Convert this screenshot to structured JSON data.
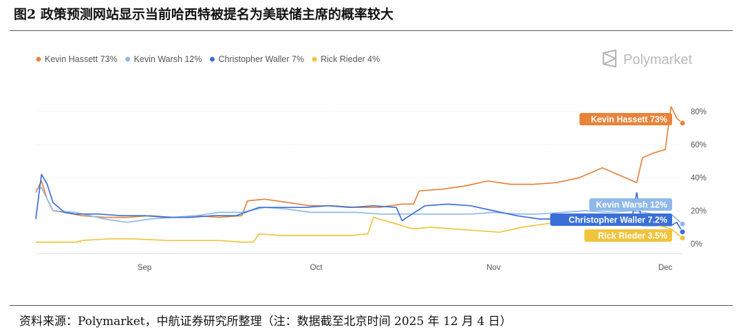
{
  "figure": {
    "title": "图2  政策预测网站显示当前哈西特被提名为美联储主席的概率较大",
    "source": "资料来源：Polymarket，中航证券研究所整理（注：数据截至北京时间 2025 年 12 月 4 日）"
  },
  "brand": {
    "name": "Polymarket",
    "icon": "polymarket-logo-icon",
    "color": "#b9b9b9"
  },
  "chart_data": {
    "type": "line",
    "legend_position": "top-left",
    "grid": true,
    "y_axis_side": "right",
    "ylim": [
      0,
      85
    ],
    "yticks": [
      0,
      20,
      40,
      60,
      80
    ],
    "ytick_labels": [
      "0%",
      "20%",
      "40%",
      "60%",
      "80%"
    ],
    "xlim": [
      "2025-08-13",
      "2025-12-04"
    ],
    "xticks": [
      "2025-09-01",
      "2025-10-01",
      "2025-11-01",
      "2025-12-01"
    ],
    "xtick_labels": [
      "Sep",
      "Oct",
      "Nov",
      "Dec"
    ],
    "legend": [
      {
        "label": "Kevin Hassett 73%",
        "color": "#e8833a"
      },
      {
        "label": "Kevin Warsh 12%",
        "color": "#8fb8ea"
      },
      {
        "label": "Christopher Waller 7%",
        "color": "#3a6fd8"
      },
      {
        "label": "Rick Rieder 4%",
        "color": "#f0c43c"
      }
    ],
    "end_labels": [
      "Kevin Hassett 73%",
      "Kevin Warsh 12%",
      "Christopher Waller 7.2%",
      "Rick Rieder 3.5%"
    ],
    "series": [
      {
        "name": "Kevin Hassett",
        "color": "#e8833a",
        "x": [
          "2025-08-13",
          "2025-08-14",
          "2025-08-15",
          "2025-08-16",
          "2025-08-18",
          "2025-08-21",
          "2025-08-25",
          "2025-08-29",
          "2025-09-02",
          "2025-09-06",
          "2025-09-10",
          "2025-09-14",
          "2025-09-18",
          "2025-09-19",
          "2025-09-22",
          "2025-09-26",
          "2025-09-30",
          "2025-10-04",
          "2025-10-08",
          "2025-10-12",
          "2025-10-16",
          "2025-10-18",
          "2025-10-19",
          "2025-10-23",
          "2025-10-27",
          "2025-10-31",
          "2025-11-04",
          "2025-11-08",
          "2025-11-12",
          "2025-11-16",
          "2025-11-20",
          "2025-11-24",
          "2025-11-26",
          "2025-11-27",
          "2025-11-29",
          "2025-12-01",
          "2025-12-02",
          "2025-12-03",
          "2025-12-04"
        ],
        "y": [
          31,
          38,
          27,
          20,
          19,
          17,
          16,
          16,
          17,
          16,
          17,
          16,
          17,
          26,
          27,
          25,
          23,
          23,
          22,
          22,
          24,
          24,
          32,
          33,
          35,
          38,
          36,
          36,
          37,
          40,
          46,
          40,
          37,
          52,
          55,
          57,
          83,
          76,
          73
        ]
      },
      {
        "name": "Kevin Warsh",
        "color": "#8fb8ea",
        "x": [
          "2025-08-13",
          "2025-08-14",
          "2025-08-16",
          "2025-08-20",
          "2025-08-25",
          "2025-08-29",
          "2025-09-02",
          "2025-09-06",
          "2025-09-10",
          "2025-09-14",
          "2025-09-18",
          "2025-09-22",
          "2025-09-26",
          "2025-09-30",
          "2025-10-04",
          "2025-10-08",
          "2025-10-12",
          "2025-10-16",
          "2025-10-20",
          "2025-10-24",
          "2025-10-28",
          "2025-11-01",
          "2025-11-05",
          "2025-11-09",
          "2025-11-13",
          "2025-11-17",
          "2025-11-21",
          "2025-11-25",
          "2025-11-29",
          "2025-12-02",
          "2025-12-03",
          "2025-12-04"
        ],
        "y": [
          33,
          34,
          20,
          19,
          15,
          13,
          15,
          16,
          17,
          19,
          19,
          22,
          21,
          19,
          19,
          19,
          18,
          18,
          18,
          18,
          18,
          19,
          18,
          18,
          19,
          20,
          19,
          20,
          18,
          18,
          15,
          12
        ]
      },
      {
        "name": "Christopher Waller",
        "color": "#3a6fd8",
        "x": [
          "2025-08-13",
          "2025-08-14",
          "2025-08-15",
          "2025-08-16",
          "2025-08-18",
          "2025-08-20",
          "2025-08-24",
          "2025-08-28",
          "2025-09-01",
          "2025-09-05",
          "2025-09-09",
          "2025-09-13",
          "2025-09-17",
          "2025-09-21",
          "2025-09-25",
          "2025-09-29",
          "2025-10-03",
          "2025-10-07",
          "2025-10-11",
          "2025-10-15",
          "2025-10-16",
          "2025-10-20",
          "2025-10-24",
          "2025-10-28",
          "2025-11-01",
          "2025-11-05",
          "2025-11-09",
          "2025-11-13",
          "2025-11-17",
          "2025-11-21",
          "2025-11-25",
          "2025-11-26",
          "2025-11-27",
          "2025-11-29",
          "2025-12-02",
          "2025-12-03",
          "2025-12-04"
        ],
        "y": [
          15,
          42,
          36,
          25,
          19,
          18,
          18,
          17,
          17,
          16,
          16,
          17,
          17,
          22,
          22,
          22,
          23,
          22,
          23,
          22,
          14,
          23,
          24,
          23,
          20,
          17,
          15,
          15,
          14,
          14,
          12,
          31,
          11,
          11,
          11,
          13,
          7.2
        ]
      },
      {
        "name": "Rick Rieder",
        "color": "#f0c43c",
        "x": [
          "2025-08-13",
          "2025-08-20",
          "2025-08-21",
          "2025-08-26",
          "2025-08-30",
          "2025-09-05",
          "2025-09-10",
          "2025-09-14",
          "2025-09-18",
          "2025-09-20",
          "2025-09-21",
          "2025-09-25",
          "2025-09-29",
          "2025-10-03",
          "2025-10-07",
          "2025-10-10",
          "2025-10-11",
          "2025-10-15",
          "2025-10-18",
          "2025-10-21",
          "2025-10-25",
          "2025-10-29",
          "2025-11-02",
          "2025-11-06",
          "2025-11-10",
          "2025-11-14",
          "2025-11-18",
          "2025-11-22",
          "2025-11-26",
          "2025-11-30",
          "2025-12-02",
          "2025-12-04"
        ],
        "y": [
          1,
          1,
          2,
          3,
          3,
          2,
          2,
          2,
          1,
          1,
          6,
          5,
          5,
          5,
          5,
          6,
          16,
          12,
          9,
          10,
          9,
          8,
          7,
          10,
          12,
          13,
          14,
          13,
          12,
          11,
          9,
          3.5
        ]
      }
    ]
  }
}
